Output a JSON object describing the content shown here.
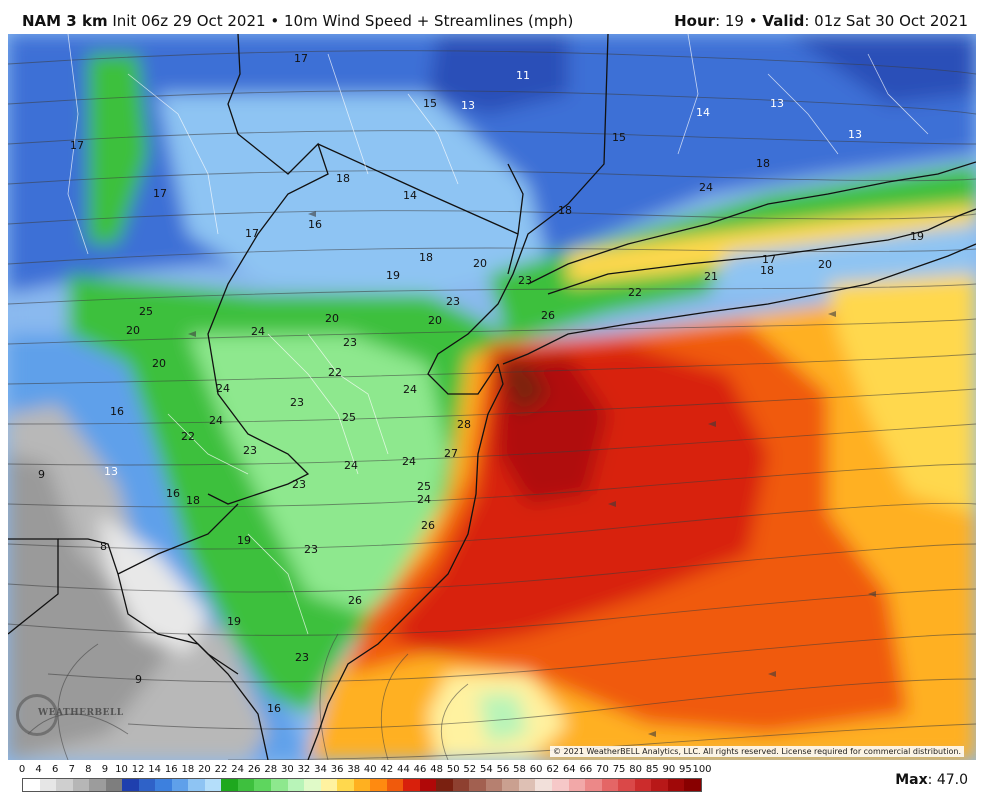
{
  "header": {
    "model": "NAM 3 km",
    "init": "Init 06z 29 Oct 2021",
    "bullet": "•",
    "product": "10m Wind Speed + Streamlines (mph)",
    "hour_label": "Hour",
    "hour_value": ": 19",
    "bullet2": "•",
    "valid_label": "Valid",
    "valid_value": ": 01z Sat 30 Oct 2021"
  },
  "map": {
    "copyright": "© 2021 WeatherBELL Analytics, LLC. All rights reserved. License required for commercial distribution.",
    "logo_text": "WEATHERBELL",
    "labels": [
      {
        "t": "17"
      },
      {
        "t": "11"
      },
      {
        "t": "15"
      },
      {
        "t": "13"
      },
      {
        "t": "14"
      },
      {
        "t": "13"
      },
      {
        "t": "15"
      },
      {
        "t": "13"
      },
      {
        "t": "17"
      },
      {
        "t": "18"
      },
      {
        "t": "17"
      },
      {
        "t": "14"
      },
      {
        "t": "18"
      },
      {
        "t": "24"
      },
      {
        "t": "18"
      },
      {
        "t": "16"
      },
      {
        "t": "17"
      },
      {
        "t": "19"
      },
      {
        "t": "18"
      },
      {
        "t": "20"
      },
      {
        "t": "19"
      },
      {
        "t": "23"
      },
      {
        "t": "23"
      },
      {
        "t": "21"
      },
      {
        "t": "17"
      },
      {
        "t": "18"
      },
      {
        "t": "20"
      },
      {
        "t": "22"
      },
      {
        "t": "25"
      },
      {
        "t": "20"
      },
      {
        "t": "24"
      },
      {
        "t": "20"
      },
      {
        "t": "20"
      },
      {
        "t": "26"
      },
      {
        "t": "23"
      },
      {
        "t": "20"
      },
      {
        "t": "22"
      },
      {
        "t": "24"
      },
      {
        "t": "24"
      },
      {
        "t": "23"
      },
      {
        "t": "16"
      },
      {
        "t": "24"
      },
      {
        "t": "25"
      },
      {
        "t": "28"
      },
      {
        "t": "22"
      },
      {
        "t": "23"
      },
      {
        "t": "27"
      },
      {
        "t": "24"
      },
      {
        "t": "24"
      },
      {
        "t": "13"
      },
      {
        "t": "9"
      },
      {
        "t": "16"
      },
      {
        "t": "18"
      },
      {
        "t": "23"
      },
      {
        "t": "25"
      },
      {
        "t": "24"
      },
      {
        "t": "26"
      },
      {
        "t": "19"
      },
      {
        "t": "23"
      },
      {
        "t": "8"
      },
      {
        "t": "26"
      },
      {
        "t": "19"
      },
      {
        "t": "23"
      },
      {
        "t": "9"
      },
      {
        "t": "16"
      }
    ]
  },
  "legend": {
    "ticks": [
      "0",
      "4",
      "6",
      "7",
      "8",
      "9",
      "10",
      "12",
      "14",
      "16",
      "18",
      "20",
      "22",
      "24",
      "26",
      "28",
      "30",
      "32",
      "34",
      "36",
      "38",
      "40",
      "42",
      "44",
      "46",
      "48",
      "50",
      "52",
      "54",
      "56",
      "58",
      "60",
      "62",
      "64",
      "66",
      "70",
      "75",
      "80",
      "85",
      "90",
      "95",
      "100"
    ],
    "colors": [
      "#ffffff",
      "#e6e6e6",
      "#cfcfcf",
      "#b6b6b6",
      "#9c9c9c",
      "#7e7e7e",
      "#1f3fae",
      "#2f62c8",
      "#3d80de",
      "#5fa0ea",
      "#8ec4f3",
      "#b4defa",
      "#1ea81e",
      "#3ec03e",
      "#5ed65e",
      "#8ee88e",
      "#b8f4b8",
      "#e0fac8",
      "#fff2a0",
      "#ffd84d",
      "#ffb020",
      "#ff8a10",
      "#f05a0c",
      "#d8200c",
      "#b00808",
      "#7a2010",
      "#8e4030",
      "#a26050",
      "#b68070",
      "#caa090",
      "#dec0b4",
      "#f2e0da",
      "#f6c8c8",
      "#f2a8a8",
      "#ec8888",
      "#e46666",
      "#da4848",
      "#cc2c2c",
      "#b81818",
      "#a00808",
      "#880000"
    ],
    "max_label": "Max",
    "max_value": ": 47.0"
  }
}
